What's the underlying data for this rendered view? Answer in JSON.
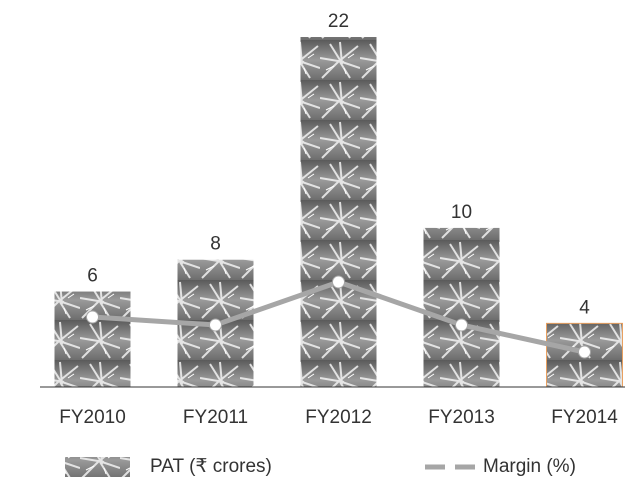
{
  "chart_data": {
    "type": "bar",
    "categories": [
      "FY2010",
      "FY2011",
      "FY2012",
      "FY2013",
      "FY2014"
    ],
    "series": [
      {
        "name": "PAT (₹ crores)",
        "type": "bar",
        "color": "#8c8c8c",
        "values": [
          6,
          8,
          22,
          10,
          4
        ]
      },
      {
        "name": "Margin (%)",
        "type": "line",
        "color": "#a6a6a6",
        "values": [
          4.4,
          3.9,
          6.6,
          3.9,
          2.2
        ]
      }
    ],
    "ylim": [
      0,
      22
    ],
    "legend": "bottom"
  }
}
